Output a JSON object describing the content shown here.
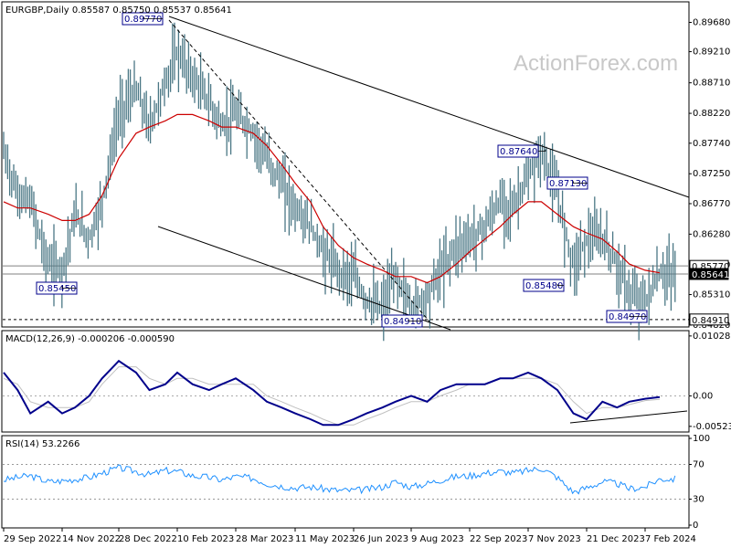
{
  "header": {
    "symbol_line": "EURGBP,Daily  0.85587 0.85750 0.85537 0.85641",
    "watermark": "ActionForex.com",
    "macd_label": "MACD(12,26,9) -0.000206 -0.000590",
    "rsi_label": "RSI(14) 53.2266"
  },
  "colors": {
    "candle": "#4a7785",
    "ma": "#cc0000",
    "macd": "#00008b",
    "signal": "#c0c0c0",
    "rsi": "#1e90ff",
    "trend": "#000000",
    "label": "#00008b"
  },
  "chart_data": [
    {
      "type": "line",
      "name": "price",
      "ylim": [
        0.8479,
        0.9001
      ],
      "y_ticks": [
        "0.89680",
        "0.89210",
        "0.88710",
        "0.88220",
        "0.87740",
        "0.87250",
        "0.86770",
        "0.86280",
        "0.85790",
        "0.85310",
        "0.84820"
      ],
      "y_tick_values": [
        0.8968,
        0.8921,
        0.8871,
        0.8822,
        0.8774,
        0.8725,
        0.8677,
        0.8628,
        0.8579,
        0.8531,
        0.8482
      ],
      "x_ticks": [
        "29 Sep 2022",
        "14 Nov 2022",
        "28 Dec 2022",
        "10 Feb 2023",
        "28 Mar 2023",
        "11 May 2023",
        "26 Jun 2023",
        "9 Aug 2023",
        "22 Sep 2023",
        "7 Nov 2023",
        "21 Dec 2023",
        "7 Feb 2024"
      ],
      "close_path_dates": [
        "29 Sep 2022",
        "10 Oct 2022",
        "20 Oct 2022",
        "3 Nov 2022",
        "14 Nov 2022",
        "24 Nov 2022",
        "5 Dec 2022",
        "15 Dec 2022",
        "28 Dec 2022",
        "10 Jan 2023",
        "20 Jan 2023",
        "1 Feb 2023",
        "10 Feb 2023",
        "22 Feb 2023",
        "7 Mar 2023",
        "17 Mar 2023",
        "28 Mar 2023",
        "10 Apr 2023",
        "20 Apr 2023",
        "1 May 2023",
        "11 May 2023",
        "23 May 2023",
        "2 Jun 2023",
        "14 Jun 2023",
        "26 Jun 2023",
        "6 Jul 2023",
        "18 Jul 2023",
        "28 Jul 2023",
        "9 Aug 2023",
        "21 Aug 2023",
        "31 Aug 2023",
        "12 Sep 2023",
        "22 Sep 2023",
        "4 Oct 2023",
        "16 Oct 2023",
        "26 Oct 2023",
        "7 Nov 2023",
        "17 Nov 2023",
        "29 Nov 2023",
        "11 Dec 2023",
        "21 Dec 2023",
        "3 Jan 2024",
        "15 Jan 2024",
        "25 Jan 2024",
        "7 Feb 2024",
        "19 Feb 2024"
      ],
      "close": [
        0.876,
        0.869,
        0.868,
        0.858,
        0.857,
        0.866,
        0.862,
        0.868,
        0.882,
        0.886,
        0.88,
        0.887,
        0.892,
        0.888,
        0.884,
        0.88,
        0.882,
        0.879,
        0.875,
        0.871,
        0.867,
        0.864,
        0.86,
        0.857,
        0.856,
        0.852,
        0.851,
        0.856,
        0.851,
        0.853,
        0.857,
        0.861,
        0.862,
        0.864,
        0.868,
        0.867,
        0.872,
        0.876,
        0.869,
        0.858,
        0.862,
        0.862,
        0.858,
        0.853,
        0.852,
        0.8564
      ],
      "ma_values": [
        0.868,
        0.867,
        0.867,
        0.866,
        0.865,
        0.865,
        0.866,
        0.869,
        0.875,
        0.879,
        0.88,
        0.881,
        0.882,
        0.882,
        0.881,
        0.88,
        0.88,
        0.879,
        0.877,
        0.874,
        0.871,
        0.868,
        0.864,
        0.861,
        0.859,
        0.858,
        0.857,
        0.856,
        0.856,
        0.855,
        0.856,
        0.858,
        0.86,
        0.862,
        0.864,
        0.866,
        0.868,
        0.868,
        0.866,
        0.864,
        0.863,
        0.862,
        0.86,
        0.858,
        0.857,
        0.8566
      ],
      "annotations": [
        {
          "text": "0.89770",
          "value": 0.8977,
          "date": "16 Jan 2023"
        },
        {
          "text": "0.85450",
          "value": 0.8545,
          "date": "14 Nov 2022"
        },
        {
          "text": "0.84910",
          "value": 0.8491,
          "date": "7 Aug 2023"
        },
        {
          "text": "0.87640",
          "value": 0.8764,
          "date": "20 Nov 2023"
        },
        {
          "text": "0.87130",
          "value": 0.8713,
          "date": "11 Dec 2023"
        },
        {
          "text": "0.85480",
          "value": 0.8548,
          "date": "29 Nov 2023"
        },
        {
          "text": "0.84970",
          "value": 0.8497,
          "date": "25 Jan 2024"
        }
      ],
      "price_tags": [
        "0.85770",
        "0.85641",
        "0.84910"
      ],
      "price_tag_values": [
        0.8577,
        0.85641,
        0.8491
      ]
    },
    {
      "type": "line",
      "name": "MACD(12,26,9)",
      "ylim": [
        -0.0062,
        0.0112
      ],
      "y_ticks": [
        "0.010283",
        "0.00",
        "-0.005232"
      ],
      "y_tick_values": [
        0.010283,
        0.0,
        -0.005232
      ],
      "macd": [
        0.004,
        0.001,
        -0.003,
        -0.001,
        -0.003,
        -0.002,
        0.0,
        0.003,
        0.006,
        0.004,
        0.001,
        0.002,
        0.004,
        0.002,
        0.001,
        0.002,
        0.003,
        0.001,
        -0.001,
        -0.002,
        -0.003,
        -0.004,
        -0.005,
        -0.005,
        -0.004,
        -0.003,
        -0.002,
        -0.001,
        0.0,
        -0.001,
        0.001,
        0.002,
        0.002,
        0.002,
        0.003,
        0.003,
        0.004,
        0.003,
        0.001,
        -0.003,
        -0.004,
        -0.001,
        -0.002,
        -0.001,
        -0.0005,
        -0.000206
      ],
      "signal": [
        0.003,
        0.002,
        -0.001,
        -0.002,
        -0.002,
        -0.002,
        -0.001,
        0.002,
        0.005,
        0.005,
        0.003,
        0.002,
        0.003,
        0.003,
        0.002,
        0.002,
        0.002,
        0.002,
        0.0,
        -0.001,
        -0.002,
        -0.003,
        -0.004,
        -0.005,
        -0.005,
        -0.004,
        -0.003,
        -0.002,
        -0.001,
        -0.001,
        0.0,
        0.001,
        0.002,
        0.002,
        0.003,
        0.003,
        0.003,
        0.003,
        0.002,
        -0.001,
        -0.003,
        -0.002,
        -0.002,
        -0.0015,
        -0.0008,
        -0.00059
      ]
    },
    {
      "type": "line",
      "name": "RSI(14)",
      "ylim": [
        0,
        100
      ],
      "y_ticks": [
        "100",
        "70",
        "30",
        "0"
      ],
      "y_tick_values": [
        100,
        70,
        30,
        0
      ],
      "rsi": [
        52,
        55,
        57,
        50,
        51,
        53,
        55,
        60,
        66,
        62,
        58,
        63,
        62,
        57,
        55,
        52,
        56,
        54,
        48,
        45,
        43,
        44,
        42,
        40,
        40,
        41,
        44,
        50,
        44,
        48,
        52,
        56,
        57,
        60,
        62,
        60,
        63,
        66,
        55,
        38,
        43,
        50,
        48,
        42,
        44,
        53.2266
      ]
    }
  ]
}
